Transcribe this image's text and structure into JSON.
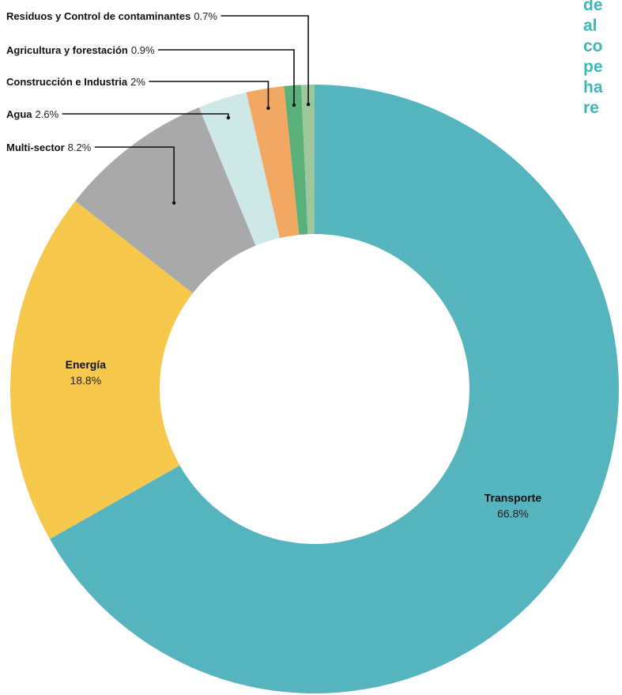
{
  "chart_data": {
    "type": "pie",
    "subtype": "donut",
    "start": "top",
    "direction": "clockwise",
    "slices": [
      {
        "name": "Transporte",
        "value": 66.8,
        "label": "66.8%",
        "color": "#55b4bd"
      },
      {
        "name": "Energía",
        "value": 18.8,
        "label": "18.8%",
        "color": "#f6c84b"
      },
      {
        "name": "Multi-sector",
        "value": 8.2,
        "label": "8.2%",
        "color": "#a8a9ab"
      },
      {
        "name": "Agua",
        "value": 2.6,
        "label": "2.6%",
        "color": "#cde8e7"
      },
      {
        "name": "Construcción e Industria",
        "value": 2.0,
        "label": "2%",
        "color": "#f2a862"
      },
      {
        "name": "Agricultura y forestación",
        "value": 0.9,
        "label": "0.9%",
        "color": "#5ab07a"
      },
      {
        "name": "Residuos y Control de contaminantes",
        "value": 0.7,
        "label": "0.7%",
        "color": "#9ec69c"
      }
    ]
  },
  "side_text": {
    "lines": [
      "de",
      "al",
      "co",
      "pe",
      "ha",
      "re"
    ],
    "color": "#3fb6b8"
  }
}
